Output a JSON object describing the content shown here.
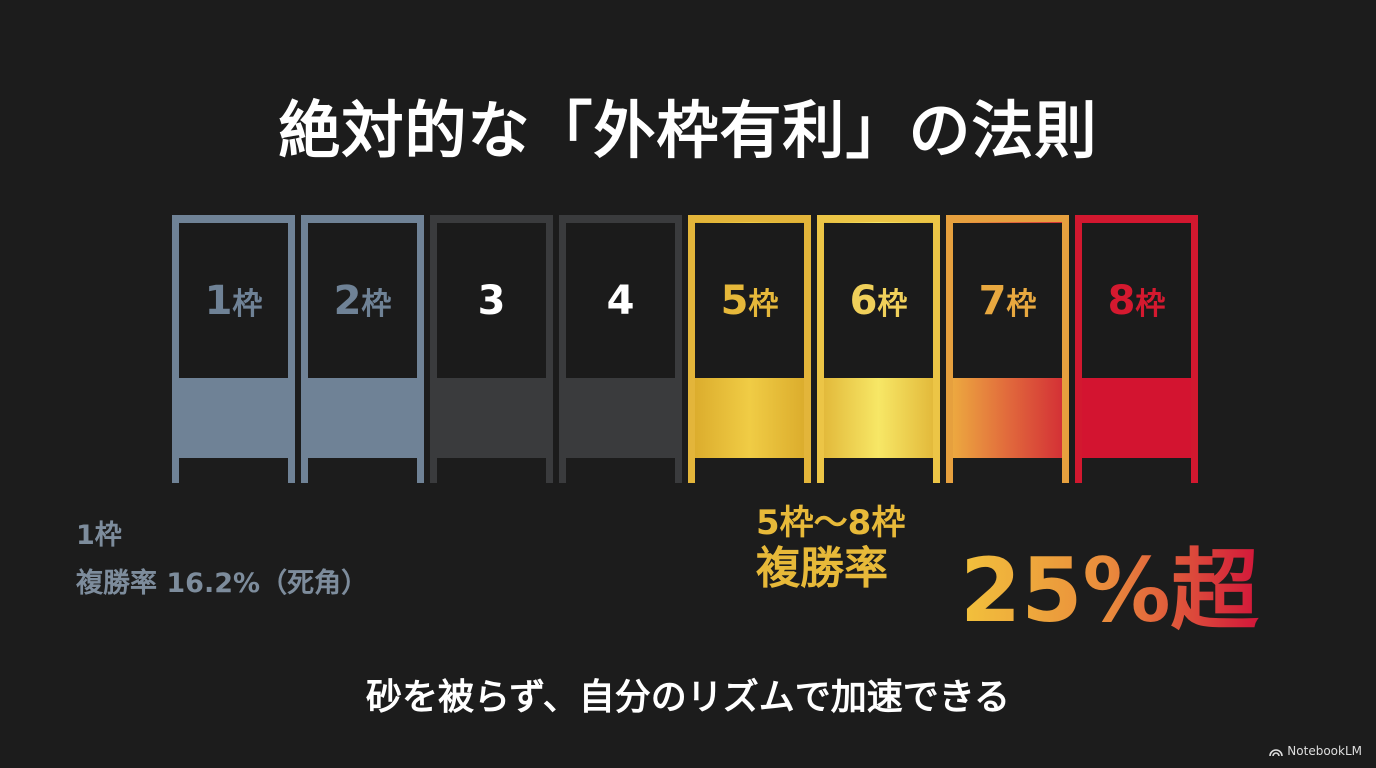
{
  "title": "絶対的な「外枠有利」の法則",
  "gates": [
    {
      "num": "1",
      "suffix": "枠",
      "frame_color": "#6f8296",
      "fill": "#6f8296",
      "text_color": "#6f8296"
    },
    {
      "num": "2",
      "suffix": "枠",
      "frame_color": "#6f8296",
      "fill": "#6f8296",
      "text_color": "#6f8296"
    },
    {
      "num": "3",
      "suffix": "",
      "frame_color": "#3a3b3d",
      "fill": "#3a3b3d",
      "text_color": "#ffffff"
    },
    {
      "num": "4",
      "suffix": "",
      "frame_color": "#3a3b3d",
      "fill": "#3a3b3d",
      "text_color": "#ffffff"
    },
    {
      "num": "5",
      "suffix": "枠",
      "frame_color": "#e3b53a",
      "fill": "linear-gradient(90deg,#d9a92a,#f0cc45,#d9a92a)",
      "text_color": "#e6b83a"
    },
    {
      "num": "6",
      "suffix": "枠",
      "frame_color": "#ecc546",
      "fill": "linear-gradient(90deg,#e0b436,#f7e766,#e0b436)",
      "text_color": "#f0d05a"
    },
    {
      "num": "7",
      "suffix": "枠",
      "frame_color": "#e6a03e",
      "fill": "linear-gradient(90deg,#eeb040,#e16a3c,#d22a35)",
      "text_color": "#e8a83f"
    },
    {
      "num": "8",
      "suffix": "枠",
      "frame_color": "#d2182f",
      "fill": "#d31430",
      "text_color": "#d5192f"
    }
  ],
  "left_note": {
    "line1": "1枠",
    "line2": "複勝率 16.2%（死角）"
  },
  "right_note": {
    "line1": "5枠〜8枠",
    "line2": "複勝率",
    "highlight": "25%超"
  },
  "footer": "砂を被らず、自分のリズムで加速できる",
  "brand": "NotebookLM",
  "brand_icon": "notebooklm-logo-icon"
}
